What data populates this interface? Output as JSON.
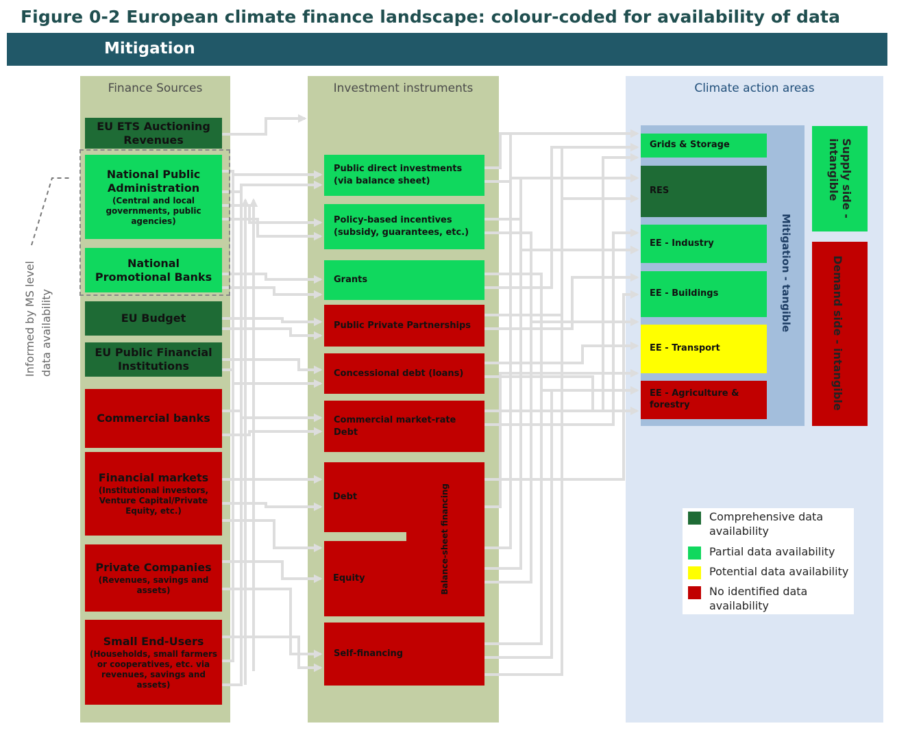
{
  "figure_title": "Figure 0-2 European climate finance landscape: colour-coded for availability of data",
  "banner": "Mitigation",
  "columns": {
    "finance_sources": "Finance Sources",
    "investment_instruments": "Investment instruments",
    "climate_action_areas": "Climate action areas"
  },
  "side_note": {
    "line1": "Informed by MS level",
    "line2": "data availability"
  },
  "sources": [
    {
      "main": "EU ETS Auctioning Revenues",
      "sub": "",
      "availability": "comprehensive"
    },
    {
      "main": "National Public Administration",
      "sub": "(Central and local governments, public agencies)",
      "availability": "partial"
    },
    {
      "main": "National Promotional Banks",
      "sub": "",
      "availability": "partial"
    },
    {
      "main": "EU Budget",
      "sub": "",
      "availability": "comprehensive"
    },
    {
      "main": "EU Public Financial Institutions",
      "sub": "",
      "availability": "comprehensive"
    },
    {
      "main": "Commercial banks",
      "sub": "",
      "availability": "none"
    },
    {
      "main": "Financial markets",
      "sub": "(Institutional investors, Venture Capital/Private Equity, etc.)",
      "availability": "none"
    },
    {
      "main": "Private Companies",
      "sub": "(Revenues, savings and assets)",
      "availability": "none"
    },
    {
      "main": "Small End-Users",
      "sub": "(Households, small farmers or cooperatives, etc. via revenues, savings and assets)",
      "availability": "none"
    }
  ],
  "instruments": [
    {
      "label": "Public direct investments\n(via balance sheet)",
      "availability": "partial"
    },
    {
      "label": "Policy-based incentives\n(subsidy, guarantees, etc.)",
      "availability": "partial"
    },
    {
      "label": "Grants",
      "availability": "partial"
    },
    {
      "label": "Public Private Partnerships",
      "availability": "none"
    },
    {
      "label": "Concessional debt (loans)",
      "availability": "none"
    },
    {
      "label": "Commercial market-rate Debt",
      "availability": "none"
    },
    {
      "label": "Debt",
      "availability": "none"
    },
    {
      "label": "Equity",
      "availability": "none"
    },
    {
      "label": "Self-financing",
      "availability": "none"
    }
  ],
  "balance_sheet_label": "Balance-sheet financing",
  "areas": [
    {
      "label": "Grids & Storage",
      "availability": "partial"
    },
    {
      "label": "RES",
      "availability": "comprehensive"
    },
    {
      "label": "EE - Industry",
      "availability": "partial"
    },
    {
      "label": "EE - Buildings",
      "availability": "partial"
    },
    {
      "label": "EE - Transport",
      "availability": "potential"
    },
    {
      "label": "EE - Agriculture & forestry",
      "availability": "none"
    }
  ],
  "mitigation_tangible_label": "Mitigation - tangible",
  "supply_side_label": "Supply side - intangible",
  "demand_side_label": "Demand side - intangible",
  "legend": [
    {
      "label": "Comprehensive data availability",
      "color": "#1e6b35"
    },
    {
      "label": "Partial data availability",
      "color": "#10d85e"
    },
    {
      "label": "Potential data availability",
      "color": "#ffff00"
    },
    {
      "label": "No identified data availability",
      "color": "#c10000"
    }
  ]
}
